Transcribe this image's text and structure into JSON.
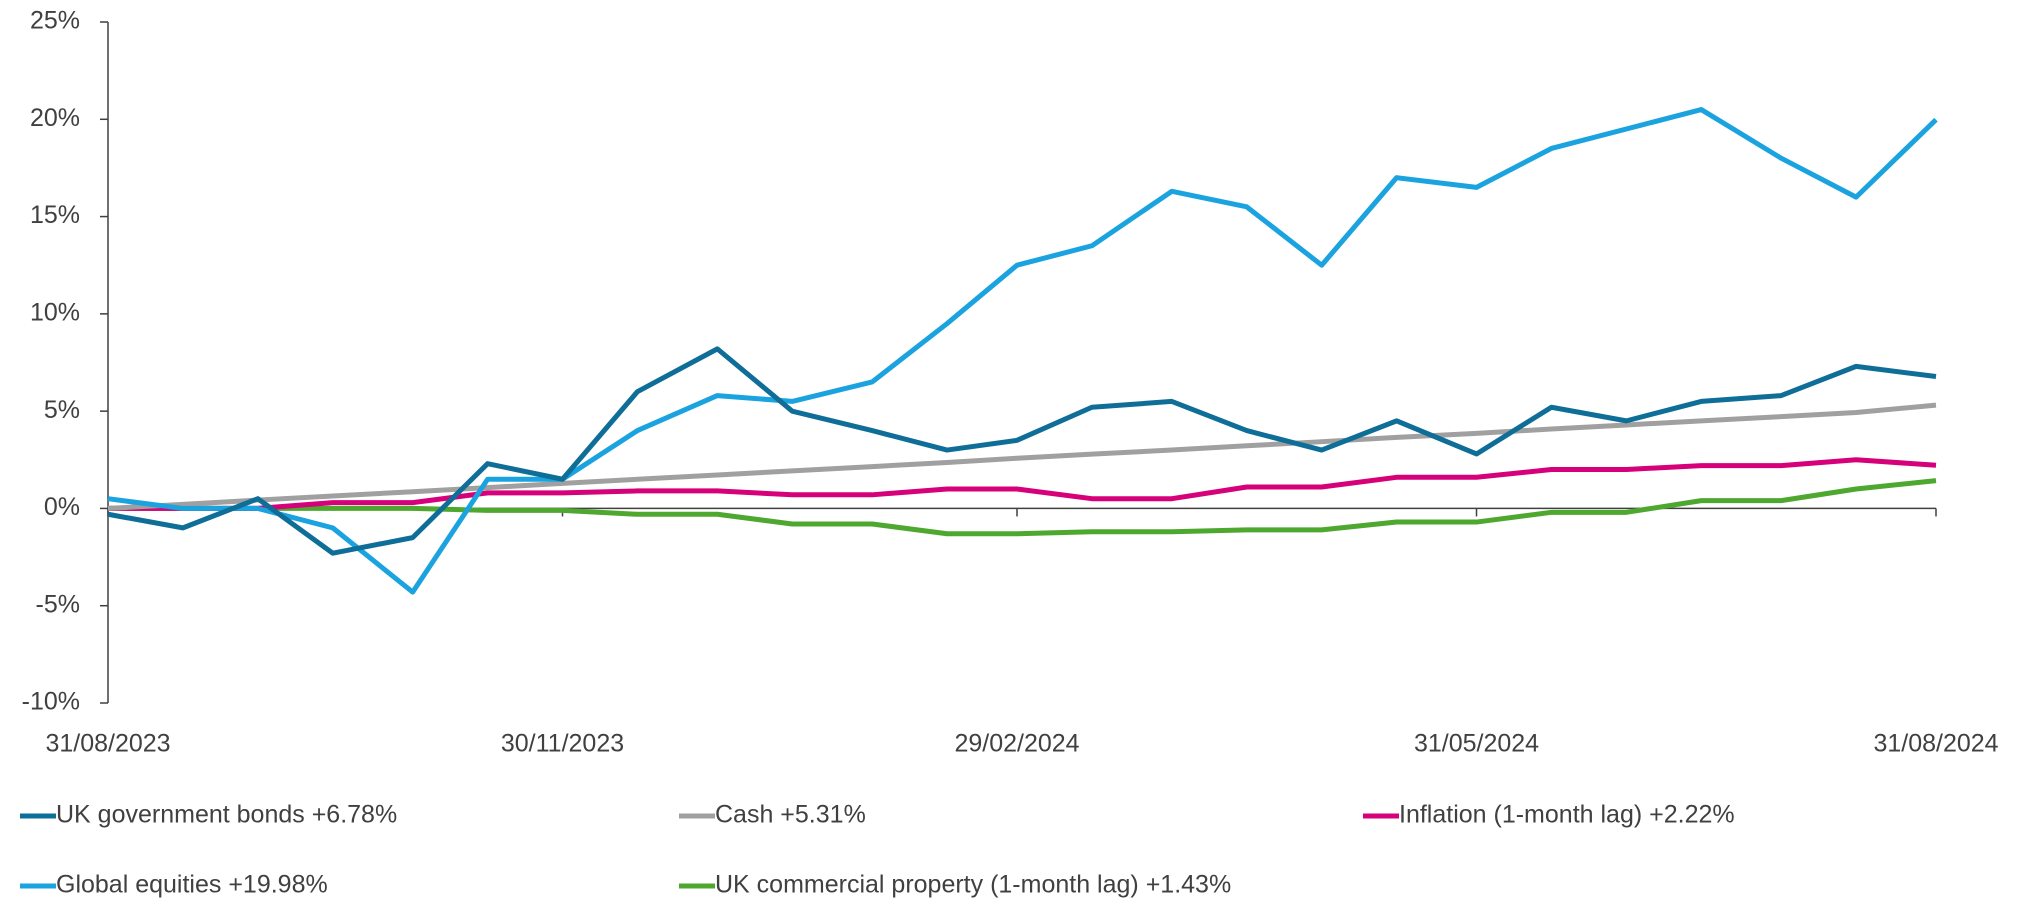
{
  "chart_data": {
    "type": "line",
    "x": [
      "2023-08-31",
      "2023-09-15",
      "2023-09-30",
      "2023-10-15",
      "2023-10-31",
      "2023-11-15",
      "2023-11-30",
      "2023-12-15",
      "2023-12-31",
      "2024-01-15",
      "2024-01-31",
      "2024-02-15",
      "2024-02-29",
      "2024-03-15",
      "2024-03-31",
      "2024-04-15",
      "2024-04-30",
      "2024-05-15",
      "2024-05-31",
      "2024-06-15",
      "2024-06-30",
      "2024-07-15",
      "2024-07-31",
      "2024-08-15",
      "2024-08-31"
    ],
    "series": [
      {
        "name": "UK government bonds +6.78%",
        "color": "#0f6e98",
        "values": [
          -0.3,
          -1.0,
          0.5,
          -2.3,
          -1.5,
          2.3,
          1.5,
          6.0,
          8.2,
          5.0,
          4.0,
          3.0,
          3.5,
          5.2,
          5.5,
          4.0,
          3.0,
          4.5,
          2.8,
          5.2,
          4.5,
          5.5,
          5.8,
          7.3,
          6.78
        ]
      },
      {
        "name": "Cash +5.31%",
        "color": "#a0a0a0",
        "values": [
          0,
          0.21,
          0.43,
          0.64,
          0.86,
          1.07,
          1.29,
          1.5,
          1.72,
          1.93,
          2.15,
          2.36,
          2.58,
          2.79,
          3.0,
          3.22,
          3.43,
          3.65,
          3.86,
          4.08,
          4.29,
          4.5,
          4.72,
          4.93,
          5.31
        ]
      },
      {
        "name": "Inflation (1-month lag) +2.22%",
        "color": "#d6007a",
        "values": [
          0,
          0,
          0,
          0.3,
          0.3,
          0.8,
          0.8,
          0.9,
          0.9,
          0.7,
          0.7,
          1.0,
          1.0,
          0.5,
          0.5,
          1.1,
          1.1,
          1.6,
          1.6,
          2.0,
          2.0,
          2.2,
          2.2,
          2.5,
          2.22
        ]
      },
      {
        "name": "Global equities  +19.98%",
        "color": "#1ba3e0",
        "values": [
          0.5,
          0.0,
          0.0,
          -1.0,
          -4.3,
          1.5,
          1.5,
          4.0,
          5.8,
          5.5,
          6.5,
          9.5,
          12.5,
          13.5,
          16.3,
          15.5,
          12.5,
          17.0,
          16.5,
          18.5,
          19.5,
          20.5,
          18.0,
          16.0,
          19.98
        ]
      },
      {
        "name": "UK commercial property (1-month lag) +1.43%",
        "color": "#4ea72e",
        "values": [
          0,
          0,
          0,
          0,
          0,
          -0.1,
          -0.1,
          -0.3,
          -0.3,
          -0.8,
          -0.8,
          -1.3,
          -1.3,
          -1.2,
          -1.2,
          -1.1,
          -1.1,
          -0.7,
          -0.7,
          -0.2,
          -0.2,
          0.4,
          0.4,
          1.0,
          1.43
        ]
      }
    ],
    "xlim": [
      "2023-08-31",
      "2024-08-31"
    ],
    "xticks": [
      {
        "value": "2023-08-31",
        "label": "31/08/2023"
      },
      {
        "value": "2023-11-30",
        "label": "30/11/2023"
      },
      {
        "value": "2024-02-29",
        "label": "29/02/2024"
      },
      {
        "value": "2024-05-31",
        "label": "31/05/2024"
      },
      {
        "value": "2024-08-31",
        "label": "31/08/2024"
      }
    ],
    "ylim": [
      -10,
      25
    ],
    "yticks": [
      {
        "value": -10,
        "label": "-10%"
      },
      {
        "value": -5,
        "label": "-5%"
      },
      {
        "value": 0,
        "label": "0%"
      },
      {
        "value": 5,
        "label": "5%"
      },
      {
        "value": 10,
        "label": "10%"
      },
      {
        "value": 15,
        "label": "15%"
      },
      {
        "value": 20,
        "label": "20%"
      },
      {
        "value": 25,
        "label": "25%"
      }
    ],
    "legend": "bottom"
  }
}
